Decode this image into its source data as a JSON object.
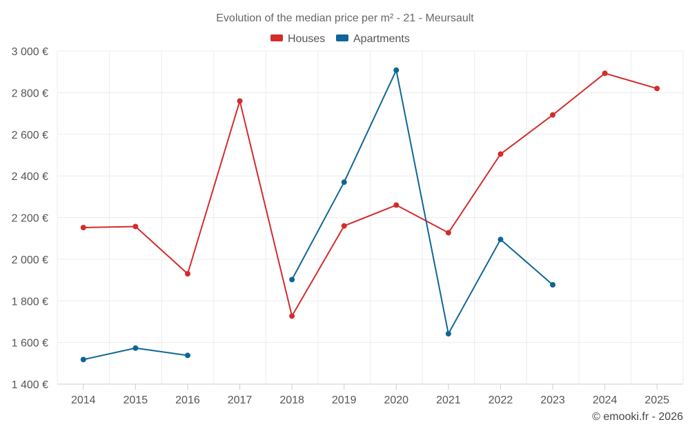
{
  "chart_data": {
    "type": "line",
    "title": "Evolution of the median price per m² - 21 - Meursault",
    "categories": [
      "2014",
      "2015",
      "2016",
      "2017",
      "2018",
      "2019",
      "2020",
      "2021",
      "2022",
      "2023",
      "2024",
      "2025"
    ],
    "ylim": [
      1400,
      3000
    ],
    "yticks": [
      1400,
      1600,
      1800,
      2000,
      2200,
      2400,
      2600,
      2800,
      3000
    ],
    "ytick_labels": [
      "1 400 €",
      "1 600 €",
      "1 800 €",
      "2 000 €",
      "2 200 €",
      "2 400 €",
      "2 600 €",
      "2 800 €",
      "3 000 €"
    ],
    "grid": true,
    "legend_position": "top-center",
    "series": [
      {
        "name": "Houses",
        "color": "#d42b2b",
        "values": [
          2152,
          2157,
          1930,
          2760,
          1727,
          2160,
          2260,
          2127,
          2505,
          2693,
          2893,
          2820
        ]
      },
      {
        "name": "Apartments",
        "color": "#0e6597",
        "values": [
          1518,
          1573,
          1538,
          null,
          1902,
          2370,
          2908,
          1642,
          2095,
          1877,
          null,
          null
        ]
      }
    ]
  },
  "credit": "© emooki.fr - 2026"
}
